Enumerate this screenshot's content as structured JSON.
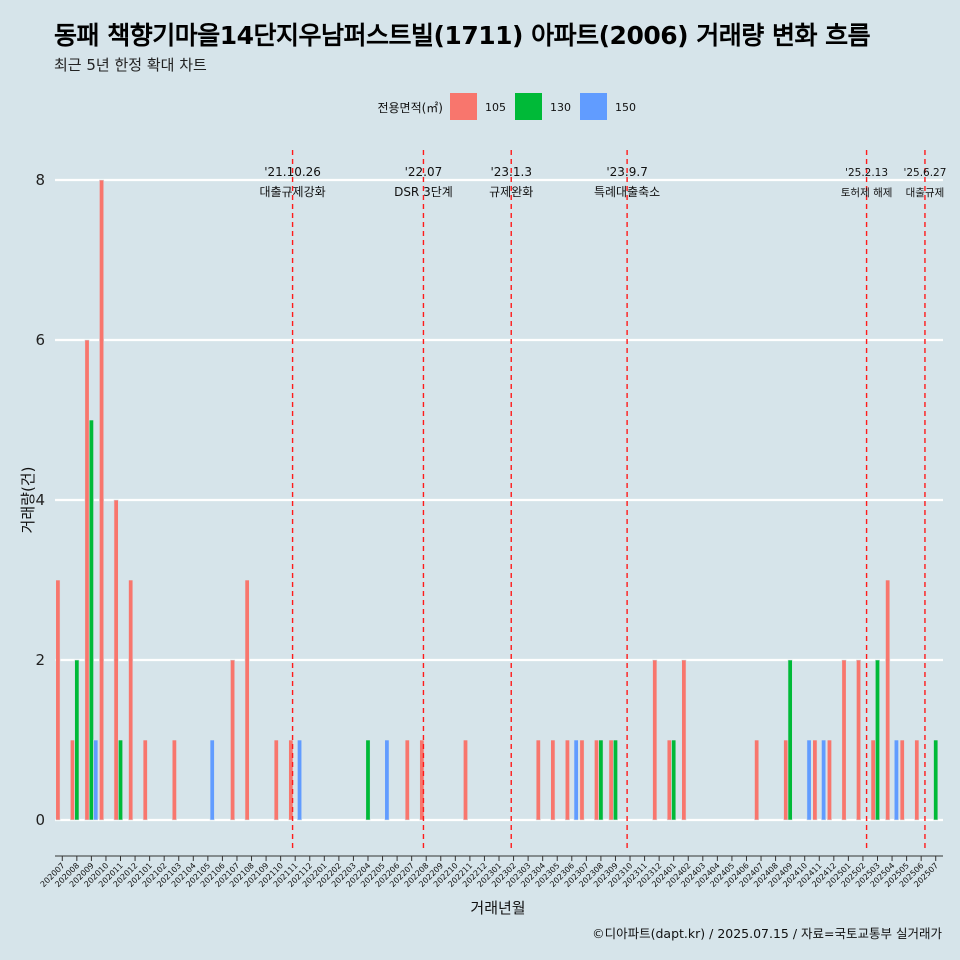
{
  "title": "동패 책향기마을14단지우남퍼스트빌(1711) 아파트(2006) 거래량 변화 흐름",
  "subtitle": "최근 5년 한정 확대 차트",
  "caption": "©디아파트(dapt.kr) / 2025.07.15 / 자료=국토교통부 실거래가",
  "chart_data": {
    "type": "bar",
    "xlabel": "거래년월",
    "ylabel": "거래량(건)",
    "ylim": [
      -0.4,
      8.4
    ],
    "yticks": [
      0,
      2,
      4,
      6,
      8
    ],
    "grid": "horizontal major",
    "legend": {
      "title": "전용면적(㎡)",
      "position": "top",
      "entries": [
        {
          "name": "105",
          "color": "#f8766d"
        },
        {
          "name": "130",
          "color": "#00ba38"
        },
        {
          "name": "150",
          "color": "#619cff"
        }
      ]
    },
    "categories": [
      "202007",
      "202008",
      "202009",
      "202010",
      "202011",
      "202012",
      "202101",
      "202102",
      "202103",
      "202104",
      "202105",
      "202106",
      "202107",
      "202108",
      "202109",
      "202110",
      "202111",
      "202112",
      "202201",
      "202202",
      "202203",
      "202204",
      "202205",
      "202206",
      "202207",
      "202208",
      "202209",
      "202210",
      "202211",
      "202212",
      "202301",
      "202302",
      "202303",
      "202304",
      "202305",
      "202306",
      "202307",
      "202308",
      "202309",
      "202310",
      "202311",
      "202312",
      "202401",
      "202402",
      "202403",
      "202404",
      "202405",
      "202406",
      "202407",
      "202408",
      "202409",
      "202410",
      "202411",
      "202412",
      "202501",
      "202502",
      "202503",
      "202504",
      "202505",
      "202506",
      "202507"
    ],
    "series": [
      {
        "name": "105",
        "color": "#f8766d",
        "values": [
          3,
          1,
          6,
          8,
          4,
          3,
          1,
          0,
          1,
          0,
          0,
          0,
          2,
          3,
          0,
          1,
          1,
          0,
          0,
          0,
          0,
          0,
          0,
          0,
          1,
          1,
          0,
          0,
          1,
          0,
          0,
          0,
          0,
          1,
          1,
          1,
          1,
          1,
          1,
          0,
          0,
          2,
          1,
          2,
          0,
          0,
          0,
          0,
          1,
          0,
          1,
          0,
          1,
          1,
          2,
          2,
          1,
          3,
          1,
          1,
          0
        ]
      },
      {
        "name": "130",
        "color": "#00ba38",
        "values": [
          0,
          2,
          5,
          0,
          1,
          0,
          0,
          0,
          0,
          0,
          0,
          0,
          0,
          0,
          0,
          0,
          0,
          0,
          0,
          0,
          0,
          1,
          0,
          0,
          0,
          0,
          0,
          0,
          0,
          0,
          0,
          0,
          0,
          0,
          0,
          0,
          0,
          1,
          1,
          0,
          0,
          0,
          1,
          0,
          0,
          0,
          0,
          0,
          0,
          0,
          2,
          0,
          0,
          0,
          0,
          0,
          2,
          0,
          0,
          0,
          1
        ]
      },
      {
        "name": "150",
        "color": "#619cff",
        "values": [
          0,
          0,
          1,
          0,
          0,
          0,
          0,
          0,
          0,
          0,
          1,
          0,
          0,
          0,
          0,
          0,
          1,
          0,
          0,
          0,
          0,
          0,
          1,
          0,
          0,
          0,
          0,
          0,
          0,
          0,
          0,
          0,
          0,
          0,
          0,
          1,
          0,
          0,
          0,
          0,
          0,
          0,
          0,
          0,
          0,
          0,
          0,
          0,
          0,
          0,
          0,
          1,
          1,
          0,
          0,
          0,
          0,
          1,
          0,
          0,
          0
        ]
      }
    ],
    "events": [
      {
        "date": "'21.10.26",
        "label": "대출규제강화",
        "x": 15.82
      },
      {
        "date": "'22.07",
        "label": "DSR 3단계",
        "x": 24.81
      },
      {
        "date": "'23.1.3",
        "label": "규제완화",
        "x": 30.84
      },
      {
        "date": "'23.9.7",
        "label": "특례대출축소",
        "x": 38.8
      },
      {
        "date": "'25.2.13",
        "label": "토허제 해제",
        "x": 55.25
      },
      {
        "date": "'25.6.27",
        "label": "대출규제",
        "x": 59.26
      }
    ]
  }
}
